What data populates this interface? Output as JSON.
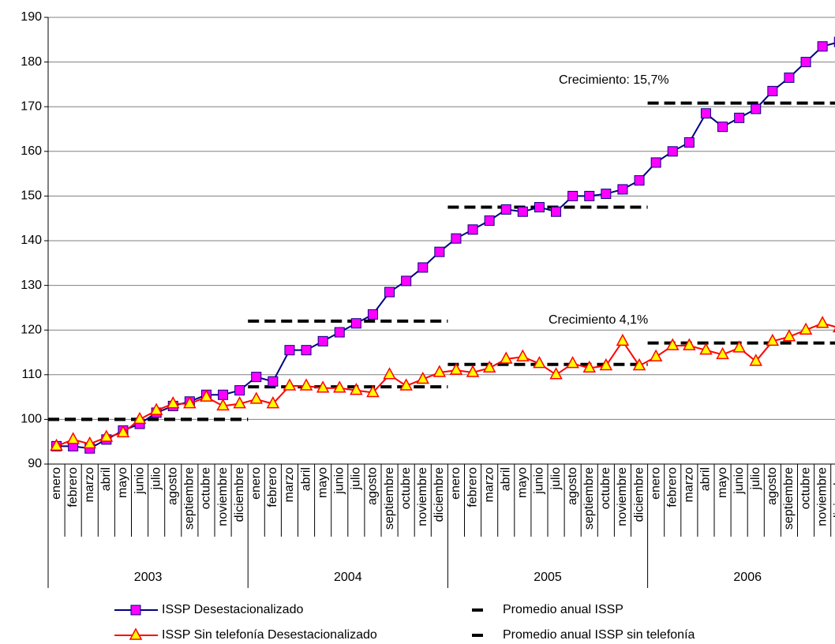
{
  "chart_data": {
    "type": "line",
    "categories": [
      "enero",
      "febrero",
      "marzo",
      "abril",
      "mayo",
      "junio",
      "julio",
      "agosto",
      "septiembre",
      "octubre",
      "noviembre",
      "diciembre",
      "enero",
      "febrero",
      "marzo",
      "abril",
      "mayo",
      "junio",
      "julio",
      "agosto",
      "septiembre",
      "octubre",
      "noviembre",
      "diciembre",
      "enero",
      "febrero",
      "marzo",
      "abril",
      "mayo",
      "junio",
      "julio",
      "agosto",
      "septiembre",
      "octubre",
      "noviembre",
      "diciembre",
      "enero",
      "febrero",
      "marzo",
      "abril",
      "mayo",
      "junio",
      "julio",
      "agosto",
      "septiembre",
      "octubre",
      "noviembre",
      "diciembre"
    ],
    "years": [
      "2003",
      "2004",
      "2005",
      "2006"
    ],
    "series": [
      {
        "name": "ISSP Desestacionalizado",
        "color": "#000080",
        "marker": "square",
        "marker_color": "#ff00ff",
        "values": [
          94,
          94,
          93.5,
          95.5,
          97.5,
          99,
          101.5,
          103,
          104,
          105.5,
          105.5,
          106.5,
          109.5,
          108.5,
          115.5,
          115.5,
          117.5,
          119.5,
          121.5,
          123.5,
          128.5,
          131,
          134,
          137.5,
          140.5,
          142.5,
          144.5,
          147,
          146.5,
          147.5,
          146.5,
          150,
          150,
          150.5,
          151.5,
          153.5,
          157.5,
          160,
          162,
          168.5,
          165.5,
          167.5,
          169.5,
          173.5,
          176.5,
          180,
          183.5,
          184.5
        ]
      },
      {
        "name": "ISSP Sin telefonía Desestacionalizado",
        "color": "#ff0000",
        "marker": "triangle",
        "marker_color": "#ffff00",
        "values": [
          94,
          95.5,
          94.5,
          96,
          97,
          100,
          102,
          103.5,
          103.5,
          105,
          103,
          103.5,
          104.5,
          103.5,
          107.5,
          107.5,
          107,
          107,
          106.5,
          106,
          110,
          107.5,
          109,
          110.5,
          111,
          110.5,
          111.5,
          113.5,
          114,
          112.5,
          110,
          112.5,
          111.5,
          112,
          117.5,
          112,
          114,
          116.5,
          116.5,
          115.5,
          114.5,
          116,
          113,
          117.5,
          118.5,
          120,
          121.5,
          120.5
        ]
      }
    ],
    "averages": [
      {
        "name": "Promedio anual ISSP",
        "color": "#000000",
        "values": [
          100,
          122,
          147.5,
          170.8
        ]
      },
      {
        "name": "Promedio anual ISSP sin telefonía",
        "color": "#000000",
        "values": [
          100,
          107.3,
          112.3,
          117.1
        ]
      }
    ],
    "annotations": [
      "Crecimiento: 15,7%",
      "Crecimiento 4,1%"
    ],
    "ylim": [
      90,
      190
    ],
    "yticks": [
      90,
      100,
      110,
      120,
      130,
      140,
      150,
      160,
      170,
      180,
      190
    ],
    "grid": true
  }
}
